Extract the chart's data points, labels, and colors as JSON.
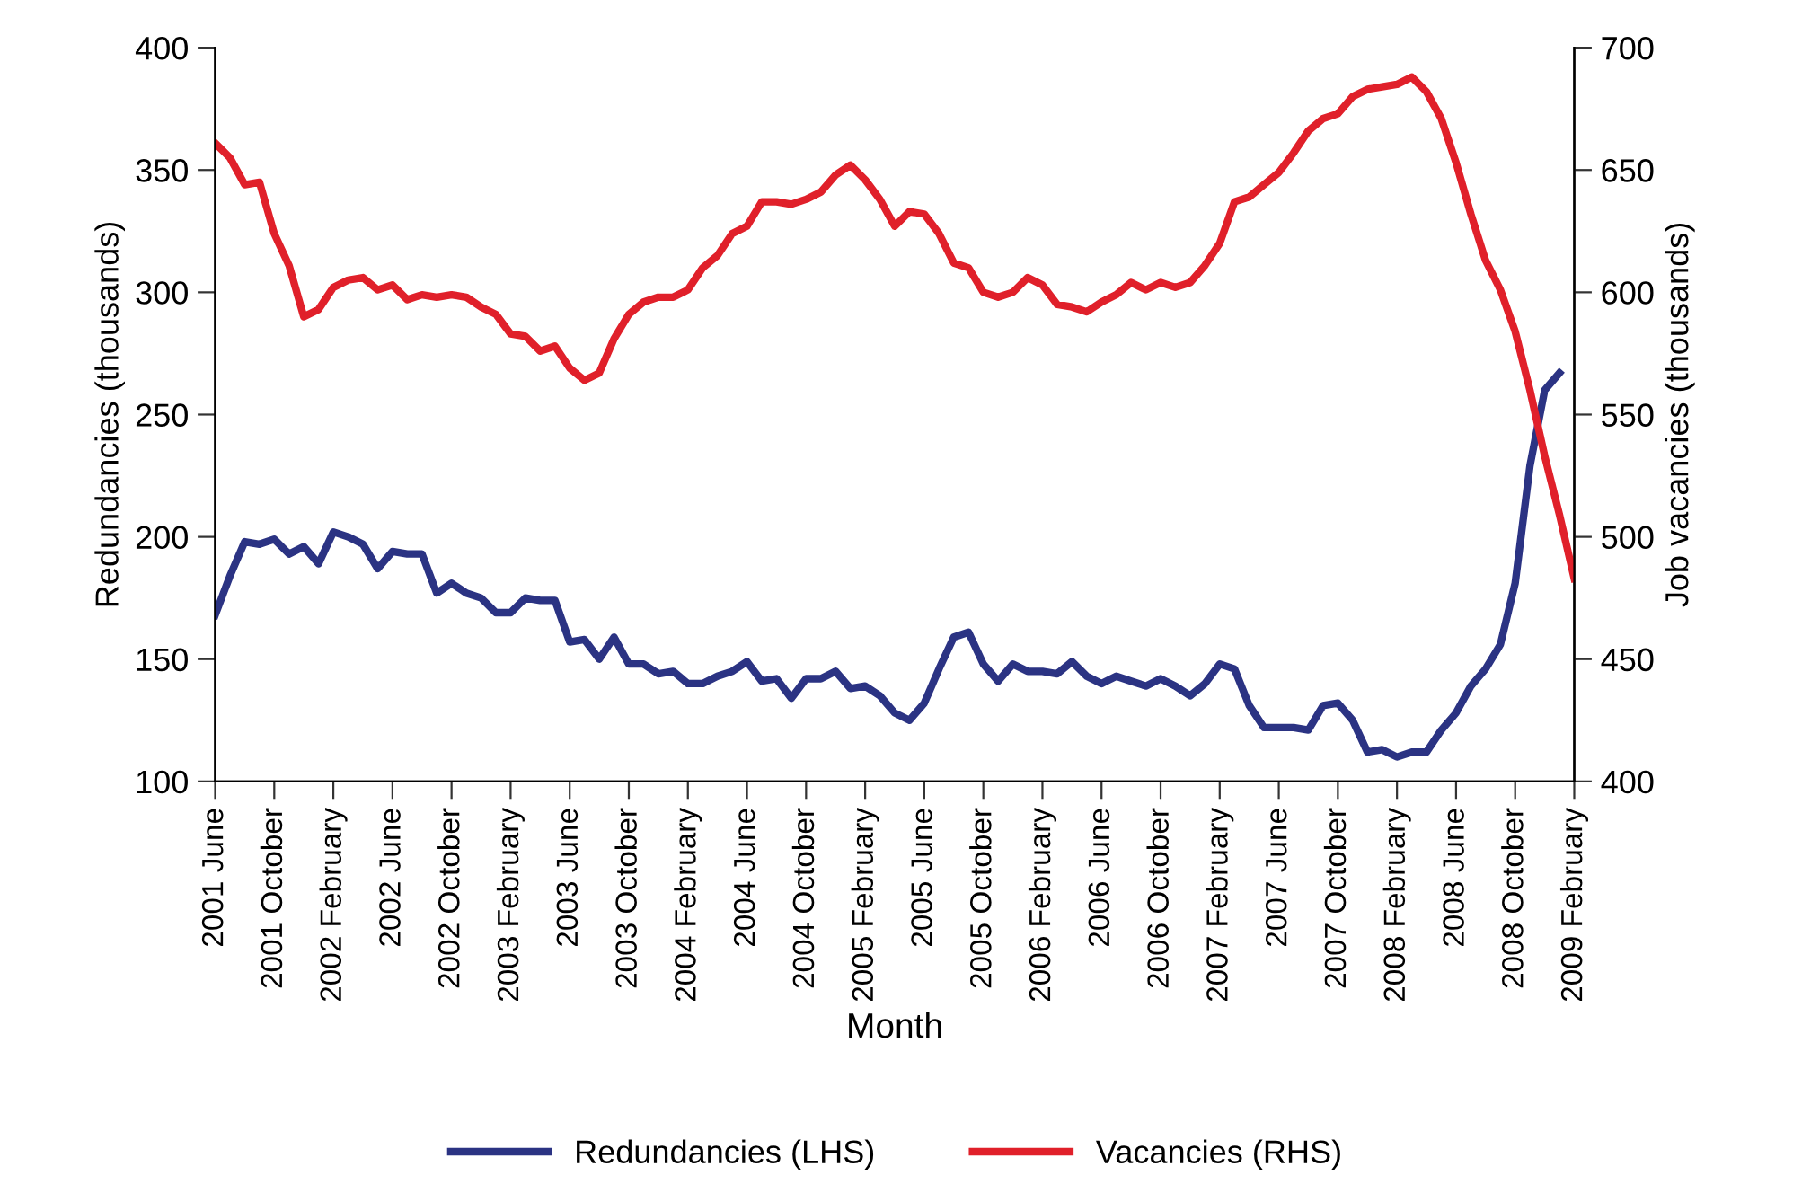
{
  "chart_data": {
    "type": "line",
    "xlabel": "Month",
    "ylabel": "Redundancies (thousands)",
    "y2label": "Job vacancies (thousands)",
    "categories": [
      "2001 June",
      null,
      null,
      null,
      "2001 October",
      null,
      null,
      null,
      "2002 February",
      null,
      null,
      null,
      "2002 June",
      null,
      null,
      null,
      "2002 October",
      null,
      null,
      null,
      "2003 February",
      null,
      null,
      null,
      "2003 June",
      null,
      null,
      null,
      "2003 October",
      null,
      null,
      null,
      "2004 February",
      null,
      null,
      null,
      "2004 June",
      null,
      null,
      null,
      "2004 October",
      null,
      null,
      null,
      "2005 February",
      null,
      null,
      null,
      "2005 June",
      null,
      null,
      null,
      "2005 October",
      null,
      null,
      null,
      "2006 February",
      null,
      null,
      null,
      "2006 June",
      null,
      null,
      null,
      "2006 October",
      null,
      null,
      null,
      "2007 February",
      null,
      null,
      null,
      "2007 June",
      null,
      null,
      null,
      "2007 October",
      null,
      null,
      null,
      "2008 February",
      null,
      null,
      null,
      "2008 June",
      null,
      null,
      null,
      "2008 October",
      null,
      null,
      null,
      "2009 February"
    ],
    "ylim": [
      100,
      400
    ],
    "yticks": [
      100,
      150,
      200,
      250,
      300,
      350,
      400
    ],
    "y2lim": [
      400,
      700
    ],
    "y2ticks": [
      400,
      450,
      500,
      550,
      600,
      650,
      700
    ],
    "legend": "bottom",
    "marker": "none",
    "line_style": "solid",
    "series": [
      {
        "name": "Redundancies (LHS)",
        "color": "#2b3383",
        "values": [
          168,
          184,
          198,
          197,
          199,
          193,
          196,
          189,
          202,
          200,
          197,
          187,
          194,
          193,
          193,
          177,
          181,
          177,
          175,
          169,
          169,
          175,
          174,
          174,
          157,
          158,
          150,
          159,
          148,
          148,
          144,
          145,
          140,
          140,
          143,
          145,
          149,
          141,
          142,
          134,
          142,
          142,
          145,
          138,
          139,
          135,
          128,
          125,
          132,
          146,
          159,
          161,
          148,
          141,
          148,
          145,
          145,
          144,
          149,
          143,
          140,
          143,
          141,
          139,
          142,
          139,
          135,
          140,
          148,
          146,
          131,
          122,
          122,
          122,
          121,
          131,
          132,
          125,
          112,
          113,
          110,
          112,
          112,
          121,
          128,
          139,
          146,
          156,
          181,
          229,
          260,
          267,
          null
        ]
      },
      {
        "name": "Vacancies (RHS)",
        "color": "#e0202a",
        "axis": "y2",
        "values": [
          661,
          655,
          644,
          645,
          624,
          611,
          590,
          593,
          602,
          605,
          606,
          601,
          603,
          597,
          599,
          598,
          599,
          598,
          594,
          591,
          583,
          582,
          576,
          578,
          569,
          564,
          567,
          581,
          591,
          596,
          598,
          598,
          601,
          610,
          615,
          624,
          627,
          637,
          637,
          636,
          638,
          641,
          648,
          652,
          646,
          638,
          627,
          633,
          632,
          624,
          612,
          610,
          600,
          598,
          600,
          606,
          603,
          595,
          594,
          592,
          596,
          599,
          604,
          601,
          604,
          602,
          604,
          611,
          620,
          637,
          639,
          644,
          649,
          657,
          666,
          671,
          673,
          680,
          683,
          684,
          685,
          688,
          682,
          671,
          653,
          632,
          613,
          601,
          584,
          560,
          533,
          509,
          483
        ]
      }
    ]
  }
}
